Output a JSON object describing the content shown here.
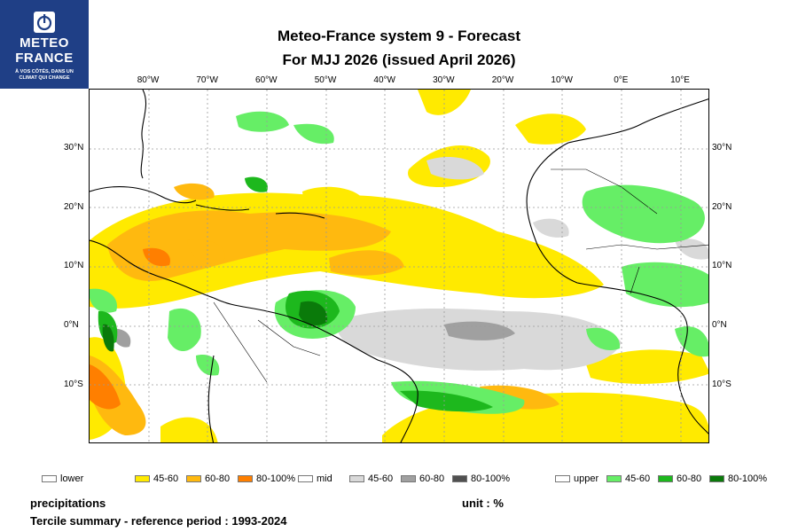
{
  "logo": {
    "line1": "METEO",
    "line2": "FRANCE",
    "tag1": "À VOS CÔTÉS, DANS UN",
    "tag2": "CLIMAT QUI CHANGE"
  },
  "title": {
    "line1": "Meteo-France system 9  -  Forecast",
    "line2": "For MJJ 2026      (issued April 2026)"
  },
  "axes": {
    "lon_labels": [
      "80°W",
      "70°W",
      "60°W",
      "50°W",
      "40°W",
      "30°W",
      "20°W",
      "10°W",
      "0°E",
      "10°E"
    ],
    "lat_labels": [
      "30°N",
      "20°N",
      "10°N",
      "0°N",
      "10°S"
    ]
  },
  "legend": {
    "lower": {
      "label": "lower",
      "bins": [
        {
          "text": "45-60",
          "color": "#ffea00"
        },
        {
          "text": "60-80",
          "color": "#ffb90f"
        },
        {
          "text": "80-100%",
          "color": "#ff7f00"
        }
      ]
    },
    "mid": {
      "label": "mid",
      "bins": [
        {
          "text": "45-60",
          "color": "#d9d9d9"
        },
        {
          "text": "60-80",
          "color": "#a0a0a0"
        },
        {
          "text": "80-100%",
          "color": "#505050"
        }
      ]
    },
    "upper": {
      "label": "upper",
      "bins": [
        {
          "text": "45-60",
          "color": "#66ee66"
        },
        {
          "text": "60-80",
          "color": "#1db81d"
        },
        {
          "text": "80-100%",
          "color": "#0a7a0a"
        }
      ]
    }
  },
  "footer": {
    "variable": "precipitations",
    "unit": "unit : %",
    "summary": "Tercile summary - reference period : 1993-2024"
  }
}
